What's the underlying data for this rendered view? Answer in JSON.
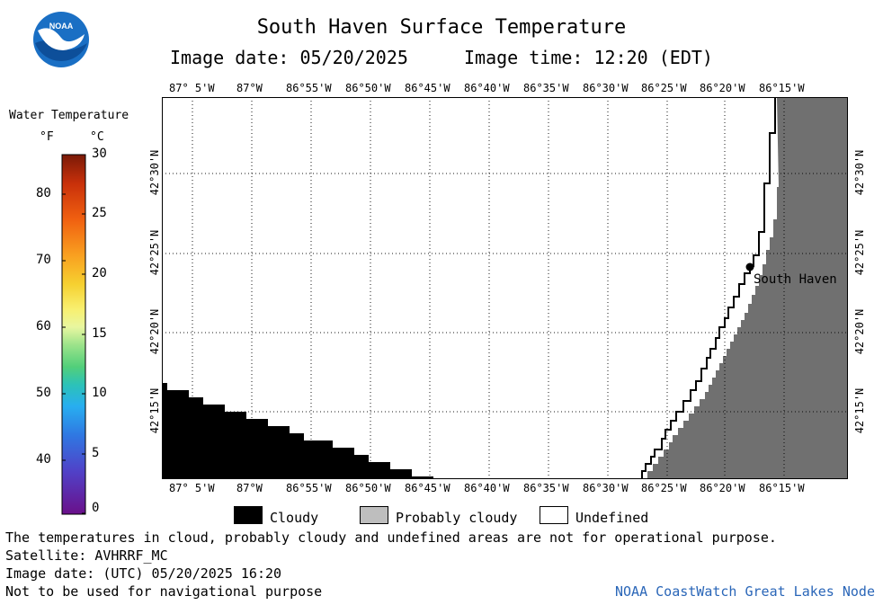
{
  "header": {
    "title": "South Haven Surface Temperature",
    "image_date": "Image date: 05/20/2025",
    "image_time": "Image time: 12:20 (EDT)"
  },
  "logo": {
    "text": "NOAA",
    "icon": "noaa-logo"
  },
  "legend": {
    "title": "Water Temperature",
    "unit_f": "°F",
    "unit_c": "°C",
    "fahrenheit_ticks": [
      "80",
      "70",
      "60",
      "50",
      "40"
    ],
    "celsius_ticks": [
      "30",
      "25",
      "20",
      "15",
      "10",
      "5",
      "0"
    ]
  },
  "map": {
    "lon_labels": [
      "87° 5'W",
      "87°W",
      "86°55'W",
      "86°50'W",
      "86°45'W",
      "86°40'W",
      "86°35'W",
      "86°30'W",
      "86°25'W",
      "86°20'W",
      "86°15'W"
    ],
    "lat_labels": [
      "42°30'N",
      "42°25'N",
      "42°20'N",
      "42°15'N"
    ],
    "city": "South Haven"
  },
  "key": {
    "cloudy": "Cloudy",
    "probably_cloudy": "Probably cloudy",
    "undefined": "Undefined",
    "colors": {
      "cloudy": "#000000",
      "probably_cloudy": "#bebebe",
      "undefined": "#ffffff",
      "land": "#707070"
    }
  },
  "footer": {
    "disclaimer": "The temperatures in cloud, probably cloudy and undefined areas are not for operational purpose.",
    "satellite": "Satellite: AVHRRF_MC",
    "utc_date": "Image date: (UTC) 05/20/2025  16:20",
    "nav_warning": "Not to be used for navigational purpose",
    "credit": "NOAA CoastWatch Great Lakes Node"
  }
}
